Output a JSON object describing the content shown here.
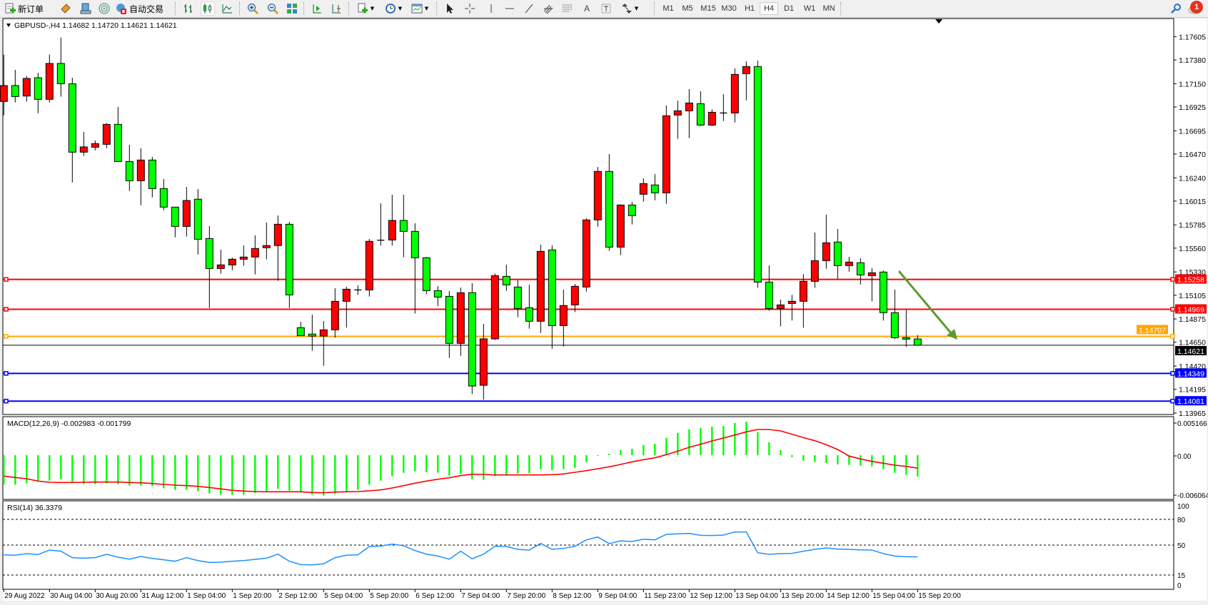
{
  "toolbar": {
    "new_order_label": "新订单",
    "auto_trading_label": "自动交易",
    "timeframes": [
      "M1",
      "M5",
      "M15",
      "M30",
      "H1",
      "H4",
      "D1",
      "W1",
      "MN"
    ],
    "selected_timeframe": "H4",
    "notification_count": "1",
    "icons": [
      "new-order-icon",
      "market-watch-icon",
      "navigator-icon",
      "signals-icon",
      "auto-trading-icon",
      "bar-chart-icon",
      "candlestick-icon",
      "line-chart-icon",
      "zoom-in-icon",
      "zoom-out-icon",
      "tile-windows-icon",
      "auto-scroll-icon",
      "chart-shift-icon",
      "indicators-icon",
      "periods-icon",
      "templates-icon",
      "cursor-icon",
      "crosshair-icon",
      "vertical-line-icon",
      "horizontal-line-icon",
      "trendline-icon",
      "fibo-channel-icon",
      "fibo-retracement-icon",
      "text-icon",
      "label-icon",
      "arrows-icon",
      "search-icon",
      "notifications-icon"
    ]
  },
  "chart": {
    "header": "GBPUSD-,H4  1.14682 1.14720 1.14621 1.14621",
    "symbol": "GBPUSD-",
    "period": "H4",
    "bull_color": "#ff0000",
    "bear_color": "#00ff00",
    "price_axis_labels": [
      "1.17605",
      "1.17380",
      "1.17150",
      "1.16925",
      "1.16695",
      "1.16470",
      "1.16240",
      "1.16015",
      "1.15785",
      "1.15560",
      "1.15330",
      "1.15105",
      "1.14875",
      "1.14650",
      "1.14420",
      "1.14195",
      "1.13965"
    ],
    "bid": {
      "price": 1.14621,
      "label": "1.14621",
      "color": "#000000"
    },
    "hlines": [
      {
        "price": 1.15258,
        "label": "1.15258",
        "color": "#ff0000"
      },
      {
        "price": 1.14969,
        "label": "1.14969",
        "color": "#ff0000"
      },
      {
        "price": 1.14707,
        "label": "1.14707",
        "color": "#ffa500"
      },
      {
        "price": 1.14349,
        "label": "1.14349",
        "color": "#0000ff"
      },
      {
        "price": 1.14081,
        "label": "1.14081",
        "color": "#0000ff"
      }
    ],
    "arrow_color": "#5a9a32",
    "time_labels": [
      "29 Aug 2022",
      "30 Aug 04:00",
      "30 Aug 20:00",
      "31 Aug 12:00",
      "1 Sep 04:00",
      "1 Sep 20:00",
      "2 Sep 12:00",
      "5 Sep 04:00",
      "5 Sep 20:00",
      "6 Sep 12:00",
      "7 Sep 04:00",
      "7 Sep 20:00",
      "8 Sep 12:00",
      "9 Sep 04:00",
      "11 Sep 23:00",
      "12 Sep 12:00",
      "13 Sep 04:00",
      "13 Sep 20:00",
      "14 Sep 12:00",
      "15 Sep 04:00",
      "15 Sep 20:00"
    ]
  },
  "macd": {
    "header": "MACD(12,26,9) -0.002983 -0.001799",
    "axis_labels": [
      "0.005166",
      "0.00",
      "-0.006064"
    ],
    "axis_values": [
      0.005166,
      0,
      -0.006064
    ],
    "histogram_color": "#00ff00",
    "signal_color": "#ff0000"
  },
  "rsi": {
    "header": "RSI(14) 36.3379",
    "levels": [
      80,
      50,
      15
    ],
    "axis_labels": [
      "100",
      "80",
      "50",
      "15",
      "0"
    ],
    "line_color": "#1e90ff"
  },
  "chart_data": [
    {
      "type": "candlestick",
      "title": "GBPUSD-,H4",
      "ylim": [
        1.13965,
        1.17605
      ],
      "ohlc": [
        [
          1.16978,
          1.17431,
          1.16844,
          1.17132
        ],
        [
          1.17132,
          1.17284,
          1.16969,
          1.17026
        ],
        [
          1.17031,
          1.17224,
          1.16976,
          1.17201
        ],
        [
          1.17208,
          1.17256,
          1.16865,
          1.16999
        ],
        [
          1.16999,
          1.17431,
          1.16969,
          1.17346
        ],
        [
          1.17346,
          1.17597,
          1.17024,
          1.1715
        ],
        [
          1.1715,
          1.17208,
          1.16196,
          1.16488
        ],
        [
          1.16488,
          1.16684,
          1.16451,
          1.16539
        ],
        [
          1.16536,
          1.16601,
          1.16506,
          1.16571
        ],
        [
          1.16564,
          1.16769,
          1.16527,
          1.16757
        ],
        [
          1.16757,
          1.16925,
          1.16398,
          1.16398
        ],
        [
          1.16398,
          1.16559,
          1.16113,
          1.16212
        ],
        [
          1.16212,
          1.16525,
          1.15975,
          1.16412
        ],
        [
          1.16412,
          1.16442,
          1.16051,
          1.16136
        ],
        [
          1.16136,
          1.16228,
          1.15927,
          1.15957
        ],
        [
          1.15957,
          1.15957,
          1.15665,
          1.1577
        ],
        [
          1.1577,
          1.16152,
          1.15672,
          1.16021
        ],
        [
          1.16033,
          1.16131,
          1.15499,
          1.15646
        ],
        [
          1.15653,
          1.15773,
          1.14981,
          1.15363
        ],
        [
          1.15363,
          1.15545,
          1.15313,
          1.15398
        ],
        [
          1.15398,
          1.15469,
          1.15347,
          1.15453
        ],
        [
          1.15453,
          1.15586,
          1.15389,
          1.15474
        ],
        [
          1.15474,
          1.15683,
          1.15306,
          1.15557
        ],
        [
          1.15564,
          1.15807,
          1.15451,
          1.15585
        ],
        [
          1.15585,
          1.15876,
          1.15244,
          1.15791
        ],
        [
          1.15791,
          1.15814,
          1.14981,
          1.15108
        ],
        [
          1.14791,
          1.14848,
          1.14715,
          1.14715
        ],
        [
          1.14729,
          1.14917,
          1.14568,
          1.1471
        ],
        [
          1.1471,
          1.14855,
          1.14423,
          1.1477
        ],
        [
          1.1477,
          1.15172,
          1.14694,
          1.15046
        ],
        [
          1.15046,
          1.15186,
          1.14791,
          1.15163
        ],
        [
          1.15156,
          1.152,
          1.15108,
          1.15156
        ],
        [
          1.15156,
          1.15649,
          1.15092,
          1.15626
        ],
        [
          1.15637,
          1.15994,
          1.15585,
          1.15637
        ],
        [
          1.15639,
          1.16076,
          1.15585,
          1.15828
        ],
        [
          1.15828,
          1.16076,
          1.15472,
          1.15722
        ],
        [
          1.15722,
          1.158,
          1.14928,
          1.15467
        ],
        [
          1.15467,
          1.15476,
          1.15115,
          1.15149
        ],
        [
          1.15149,
          1.15193,
          1.14999,
          1.15087
        ],
        [
          1.15094,
          1.15145,
          1.14499,
          1.14639
        ],
        [
          1.14639,
          1.15179,
          1.14519,
          1.15129
        ],
        [
          1.15129,
          1.15221,
          1.14149,
          1.14227
        ],
        [
          1.14234,
          1.14827,
          1.14096,
          1.14683
        ],
        [
          1.14683,
          1.15315,
          1.14671,
          1.15294
        ],
        [
          1.15287,
          1.154,
          1.15147,
          1.15205
        ],
        [
          1.15184,
          1.15253,
          1.14892,
          1.14977
        ],
        [
          1.14984,
          1.15207,
          1.14781,
          1.14853
        ],
        [
          1.14853,
          1.15593,
          1.1474,
          1.15529
        ],
        [
          1.15543,
          1.15586,
          1.14588,
          1.14811
        ],
        [
          1.14811,
          1.15159,
          1.14609,
          1.15005
        ],
        [
          1.15011,
          1.15214,
          1.14942,
          1.15191
        ],
        [
          1.15184,
          1.15849,
          1.1514,
          1.15833
        ],
        [
          1.15833,
          1.16345,
          1.15768,
          1.16302
        ],
        [
          1.16302,
          1.1647,
          1.15534,
          1.1557
        ],
        [
          1.1557,
          1.15984,
          1.15492,
          1.15977
        ],
        [
          1.15977,
          1.16007,
          1.15789,
          1.15874
        ],
        [
          1.16081,
          1.16235,
          1.1601,
          1.16184
        ],
        [
          1.16171,
          1.16276,
          1.16023,
          1.16095
        ],
        [
          1.16095,
          1.16939,
          1.15989,
          1.1684
        ],
        [
          1.16847,
          1.16987,
          1.16617,
          1.16888
        ],
        [
          1.16888,
          1.17098,
          1.16624,
          1.16964
        ],
        [
          1.16957,
          1.17077,
          1.16741,
          1.1675
        ],
        [
          1.1675,
          1.16902,
          1.16741,
          1.16874
        ],
        [
          1.16867,
          1.17049,
          1.16789,
          1.16867
        ],
        [
          1.16867,
          1.17298,
          1.16776,
          1.1724
        ],
        [
          1.17247,
          1.17367,
          1.16989,
          1.17316
        ],
        [
          1.17316,
          1.17374,
          1.15177,
          1.15232
        ],
        [
          1.15232,
          1.15393,
          1.14956,
          1.14977
        ],
        [
          1.14977,
          1.15062,
          1.14804,
          1.15011
        ],
        [
          1.15025,
          1.15108,
          1.1486,
          1.15046
        ],
        [
          1.15046,
          1.1531,
          1.14791,
          1.15239
        ],
        [
          1.15239,
          1.15711,
          1.15177,
          1.15439
        ],
        [
          1.15439,
          1.15883,
          1.15361,
          1.15612
        ],
        [
          1.15619,
          1.15745,
          1.15262,
          1.15391
        ],
        [
          1.15391,
          1.15476,
          1.15333,
          1.15425
        ],
        [
          1.15419,
          1.15462,
          1.15209,
          1.15301
        ],
        [
          1.15294,
          1.15366,
          1.15046,
          1.15322
        ],
        [
          1.15329,
          1.15343,
          1.1486,
          1.14936
        ],
        [
          1.14936,
          1.15159,
          1.1468,
          1.14694
        ],
        [
          1.14694,
          1.14963,
          1.14604,
          1.1468
        ],
        [
          1.14682,
          1.1472,
          1.14621,
          1.14621
        ]
      ]
    },
    {
      "type": "bar",
      "title": "MACD(12,26,9)",
      "ylim": [
        -0.006064,
        0.005166
      ],
      "series": [
        {
          "name": "MACD",
          "values": [
            -0.004092,
            -0.004092,
            -0.003894,
            -0.003663,
            -0.003531,
            -0.0033,
            -0.003828,
            -0.004026,
            -0.004026,
            -0.003894,
            -0.004026,
            -0.004224,
            -0.004224,
            -0.00429,
            -0.004587,
            -0.004818,
            -0.004818,
            -0.005016,
            -0.005313,
            -0.005478,
            -0.005511,
            -0.005478,
            -0.005247,
            -0.005082,
            -0.004686,
            -0.004917,
            -0.005181,
            -0.005478,
            -0.00561,
            -0.005412,
            -0.005082,
            -0.004818,
            -0.004092,
            -0.003531,
            -0.002937,
            -0.002442,
            -0.002244,
            -0.002343,
            -0.002442,
            -0.002838,
            -0.00264,
            -0.003333,
            -0.003432,
            -0.002904,
            -0.002706,
            -0.002541,
            -0.002508,
            -0.001947,
            -0.002079,
            -0.001914,
            -0.001749,
            -0.000957,
            -6.6e-05,
            0.000198,
            0.000726,
            0.000891,
            0.001419,
            0.001584,
            0.002409,
            0.003069,
            0.003564,
            0.003762,
            0.00396,
            0.004059,
            0.004455,
            0.004653,
            0.003201,
            0.001782,
            0.000693,
            -0.000264,
            -0.000759,
            -0.000957,
            -0.001089,
            -0.001287,
            -0.001353,
            -0.001452,
            -0.001551,
            -0.001947,
            -0.002442,
            -0.002739,
            -0.002983
          ]
        },
        {
          "name": "Signal",
          "values": [
            -0.002904,
            -0.003102,
            -0.003267,
            -0.003597,
            -0.003762,
            -0.003795,
            -0.003795,
            -0.003762,
            -0.003729,
            -0.003729,
            -0.003729,
            -0.003795,
            -0.003828,
            -0.003927,
            -0.004059,
            -0.004158,
            -0.004224,
            -0.004323,
            -0.004488,
            -0.004686,
            -0.004884,
            -0.004983,
            -0.005049,
            -0.005082,
            -0.005082,
            -0.005082,
            -0.005082,
            -0.005181,
            -0.005214,
            -0.005115,
            -0.005082,
            -0.005049,
            -0.00495,
            -0.004818,
            -0.004554,
            -0.004224,
            -0.003894,
            -0.003597,
            -0.003333,
            -0.003135,
            -0.002838,
            -0.00264,
            -0.002673,
            -0.002739,
            -0.002739,
            -0.002739,
            -0.002739,
            -0.002739,
            -0.002706,
            -0.002607,
            -0.002376,
            -0.002145,
            -0.001881,
            -0.001617,
            -0.001287,
            -0.000924,
            -0.000627,
            -0.000363,
            6.6e-05,
            0.000561,
            0.001089,
            0.001518,
            0.00198,
            0.002376,
            0.002805,
            0.003234,
            0.003564,
            0.003564,
            0.003366,
            0.002904,
            0.002442,
            0.002013,
            0.001452,
            0.000792,
            -0.000132,
            -0.000528,
            -0.000858,
            -0.001122,
            -0.001386,
            -0.001551,
            -0.001799
          ]
        }
      ]
    },
    {
      "type": "line",
      "title": "RSI(14)",
      "ylim": [
        0,
        100
      ],
      "values": [
        38.6,
        38.1,
        40.0,
        38.9,
        44.2,
        42.8,
        35.3,
        34.7,
        35.3,
        39.2,
        35.8,
        33.6,
        36.7,
        34.4,
        32.8,
        31.1,
        35.3,
        31.9,
        29.7,
        30.0,
        31.1,
        31.9,
        33.3,
        34.7,
        39.4,
        31.1,
        27.2,
        26.9,
        28.1,
        35.3,
        38.1,
        38.6,
        48.3,
        48.9,
        51.1,
        49.2,
        43.6,
        39.4,
        37.2,
        33.6,
        42.8,
        33.9,
        39.4,
        48.6,
        48.3,
        45.0,
        44.2,
        51.9,
        45.0,
        46.1,
        48.6,
        56.1,
        59.4,
        51.7,
        55.0,
        54.2,
        56.9,
        56.1,
        62.5,
        63.1,
        63.6,
        61.4,
        61.1,
        61.7,
        65.3,
        65.3,
        41.1,
        39.2,
        40.0,
        40.3,
        42.8,
        45.0,
        46.7,
        45.3,
        45.0,
        44.4,
        44.2,
        40.0,
        37.2,
        36.4,
        36.3
      ]
    }
  ]
}
